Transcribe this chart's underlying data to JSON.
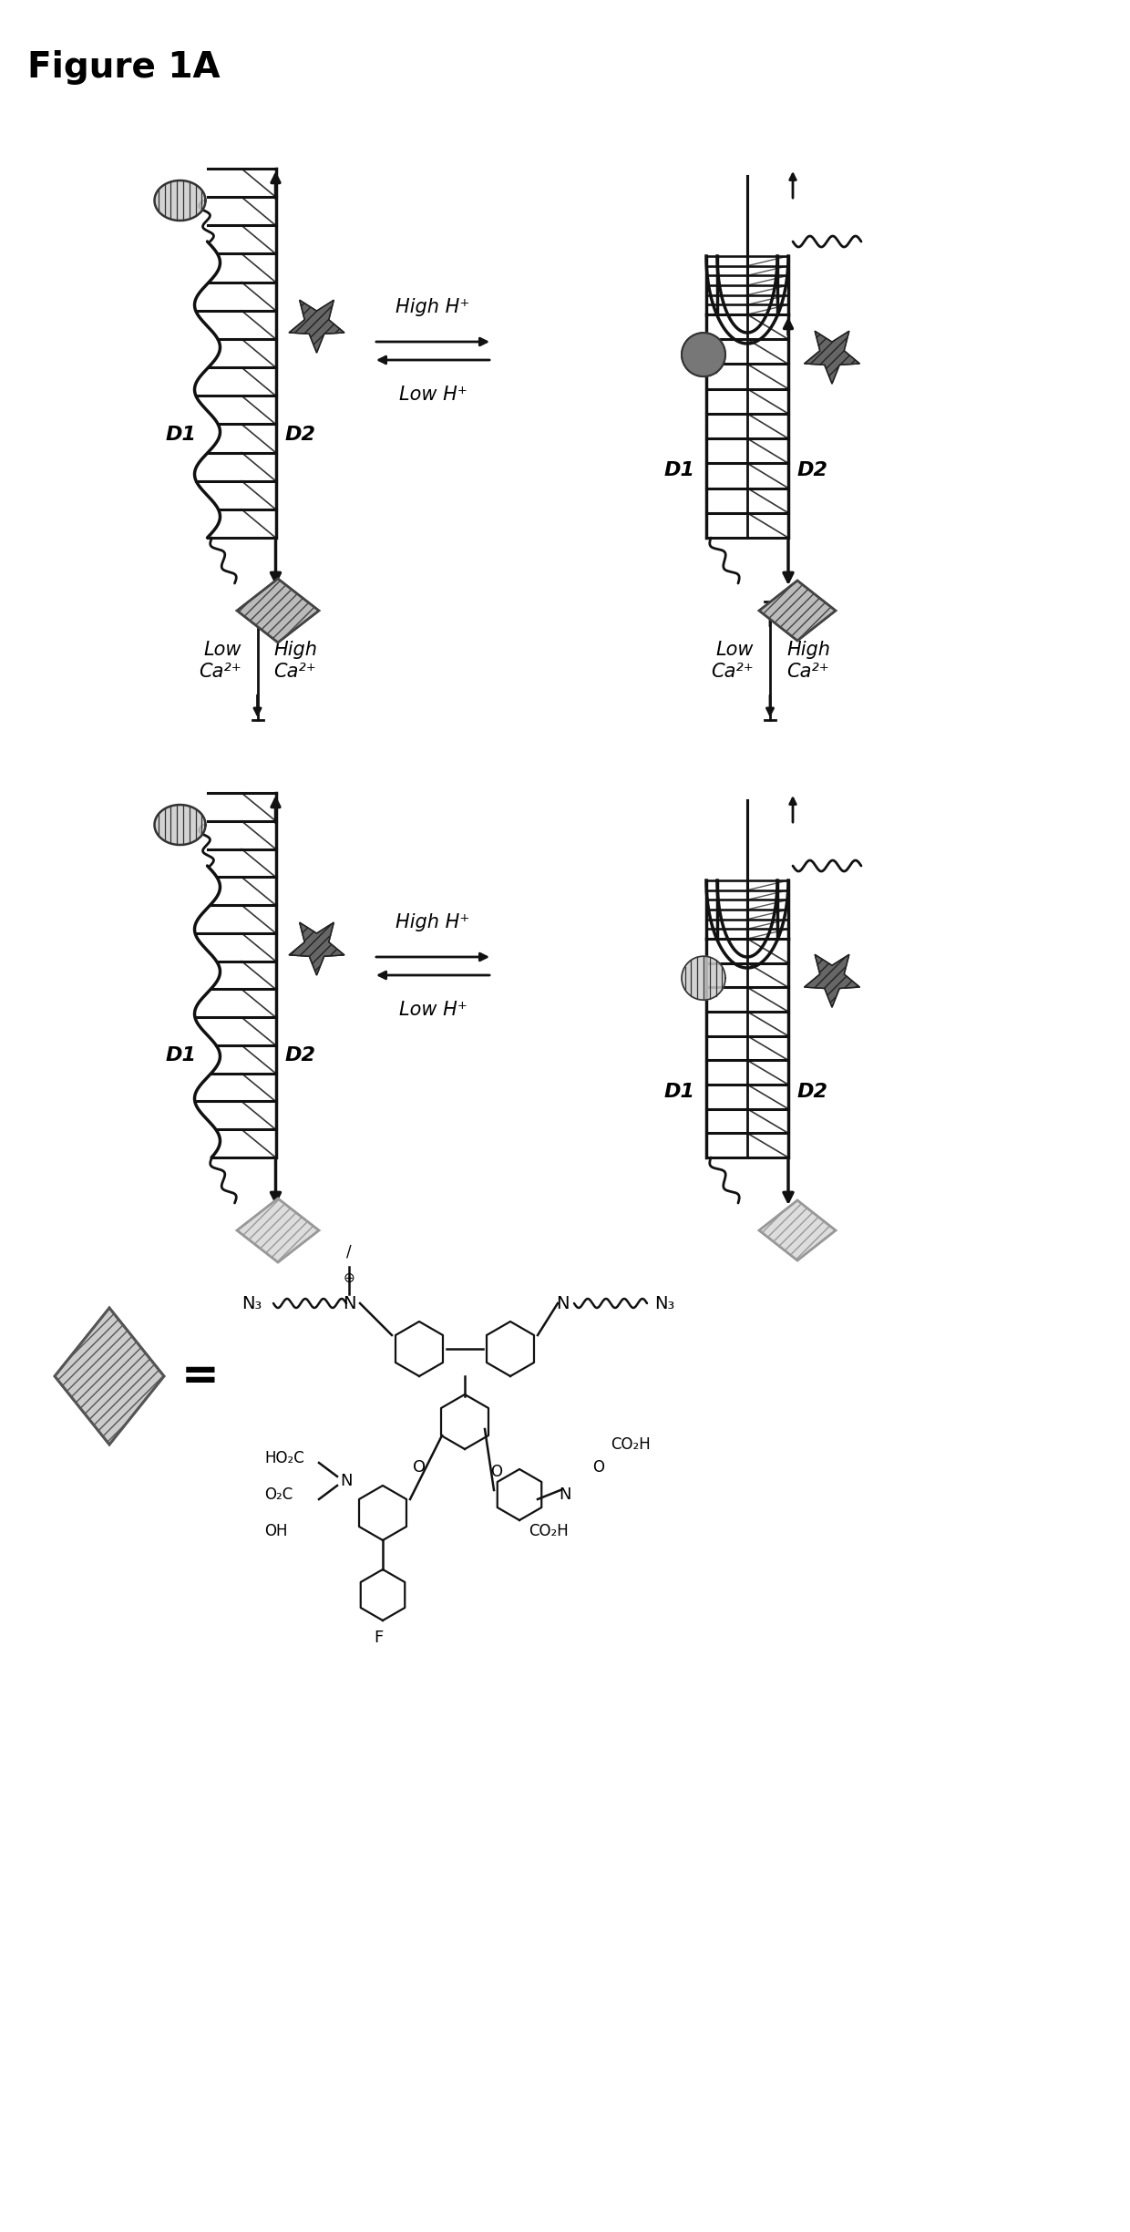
{
  "title": "Figure 1A",
  "bg_color": "#ffffff",
  "fig_width": 12.4,
  "fig_height": 24.49,
  "dpi": 100,
  "ladder_color": "#111111",
  "arrow_color": "#111111",
  "dye_star_color": "#666666",
  "diamond_color": "#aaaaaa",
  "circle_color": "#666666",
  "label_D1": "D1",
  "label_D2": "D2"
}
